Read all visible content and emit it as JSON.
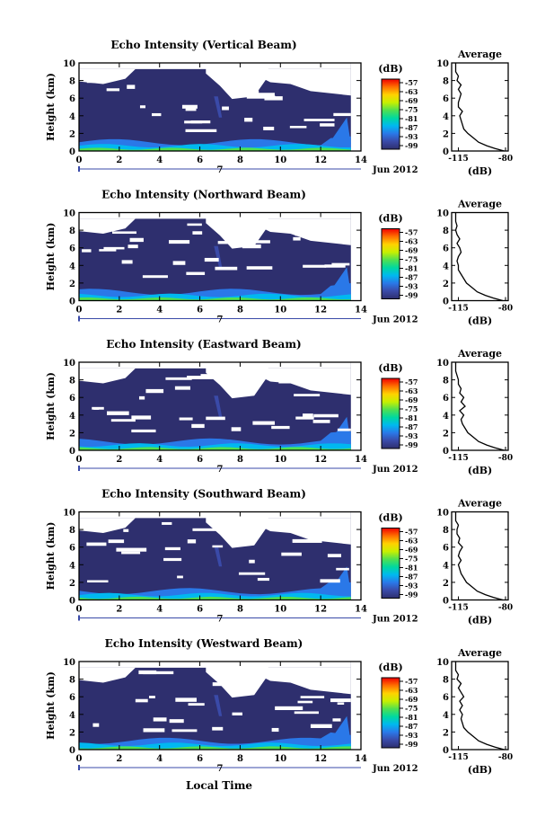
{
  "figure": {
    "xlabel": "Local Time",
    "date_label": "Jun 2012",
    "day_marker": "7",
    "colorbar_unit": "(dB)",
    "colorbar_ticks": [
      "-57",
      "-63",
      "-69",
      "-75",
      "-81",
      "-87",
      "-93",
      "-99"
    ],
    "colors": [
      "#f00000",
      "#ff7000",
      "#ffd200",
      "#c8f000",
      "#50e050",
      "#00d8a0",
      "#00b8f0",
      "#2a78e8",
      "#3a4aa8",
      "#2e2f6e"
    ],
    "background_color": "#2e2f6e",
    "gap_color": "#ffffff"
  },
  "chart_data": [
    {
      "type": "heatmap",
      "title": "Echo Intensity (Vertical Beam)",
      "ylabel": "Height (km)",
      "xlim": [
        0,
        14
      ],
      "ylim": [
        0,
        10
      ],
      "xticks": [
        "0",
        "2",
        "4",
        "6",
        "8",
        "10",
        "12",
        "14"
      ],
      "yticks": [
        "0",
        "2",
        "4",
        "6",
        "8",
        "10"
      ],
      "data_extent_hours": [
        0,
        13.5
      ],
      "profile": {
        "title": "Average",
        "xlabel": "(dB)",
        "xticks": [
          "-115",
          "-80"
        ],
        "xlim": [
          -120,
          -78
        ],
        "yticks": [
          "0",
          "2",
          "4",
          "6",
          "8",
          "10"
        ],
        "height": [
          0,
          0.3,
          0.6,
          1,
          1.5,
          2,
          2.5,
          3,
          3.5,
          4,
          4.5,
          5,
          5.5,
          6,
          6.5,
          7,
          7.5,
          8,
          8.5,
          9,
          9.5,
          10
        ],
        "values": [
          -81,
          -88,
          -94,
          -100,
          -104,
          -108,
          -111,
          -112,
          -113,
          -114,
          -112,
          -115,
          -115,
          -114,
          -113,
          -115,
          -113,
          -116,
          -115,
          -117,
          -117,
          -117
        ]
      }
    },
    {
      "type": "heatmap",
      "title": "Echo Intensity (Northward Beam)",
      "ylabel": "Height (km)",
      "xlim": [
        0,
        14
      ],
      "ylim": [
        0,
        10
      ],
      "xticks": [
        "0",
        "2",
        "4",
        "6",
        "8",
        "10",
        "12",
        "14"
      ],
      "yticks": [
        "0",
        "2",
        "4",
        "6",
        "8",
        "10"
      ],
      "data_extent_hours": [
        0,
        13.5
      ],
      "profile": {
        "title": "Average",
        "xlabel": "(dB)",
        "xticks": [
          "-115",
          "-80"
        ],
        "xlim": [
          -120,
          -78
        ],
        "yticks": [
          "0",
          "2",
          "4",
          "6",
          "8",
          "10"
        ],
        "height": [
          0,
          0.3,
          0.6,
          1,
          1.5,
          2,
          2.5,
          3,
          3.5,
          4,
          4.5,
          5,
          5.5,
          6,
          6.5,
          7,
          7.5,
          8,
          8.5,
          9,
          9.5,
          10
        ],
        "values": [
          -82,
          -89,
          -95,
          -101,
          -105,
          -109,
          -111,
          -113,
          -115,
          -115,
          -116,
          -115,
          -113,
          -114,
          -116,
          -114,
          -116,
          -117,
          -116,
          -117,
          -117,
          -117
        ]
      }
    },
    {
      "type": "heatmap",
      "title": "Echo Intensity (Eastward Beam)",
      "ylabel": "Height (km)",
      "xlim": [
        0,
        14
      ],
      "ylim": [
        0,
        10
      ],
      "xticks": [
        "0",
        "2",
        "4",
        "6",
        "8",
        "10",
        "12",
        "14"
      ],
      "yticks": [
        "0",
        "2",
        "4",
        "6",
        "8",
        "10"
      ],
      "data_extent_hours": [
        0,
        13.5
      ],
      "profile": {
        "title": "Average",
        "xlabel": "(dB)",
        "xticks": [
          "-115",
          "-80"
        ],
        "xlim": [
          -120,
          -78
        ],
        "yticks": [
          "0",
          "2",
          "4",
          "6",
          "8",
          "10"
        ],
        "height": [
          0,
          0.3,
          0.6,
          1,
          1.5,
          2,
          2.5,
          3,
          3.5,
          4,
          4.5,
          5,
          5.5,
          6,
          6.5,
          7,
          7.5,
          8,
          8.5,
          9,
          9.5,
          10
        ],
        "values": [
          -81,
          -88,
          -94,
          -100,
          -104,
          -108,
          -110,
          -112,
          -113,
          -111,
          -114,
          -110,
          -113,
          -111,
          -114,
          -113,
          -115,
          -115,
          -116,
          -117,
          -117,
          -117
        ]
      }
    },
    {
      "type": "heatmap",
      "title": "Echo Intensity (Southward Beam)",
      "ylabel": "Height (km)",
      "xlim": [
        0,
        14
      ],
      "ylim": [
        0,
        10
      ],
      "xticks": [
        "0",
        "2",
        "4",
        "6",
        "8",
        "10",
        "12",
        "14"
      ],
      "yticks": [
        "0",
        "2",
        "4",
        "6",
        "8",
        "10"
      ],
      "data_extent_hours": [
        0,
        13.5
      ],
      "profile": {
        "title": "Average",
        "xlabel": "(dB)",
        "xticks": [
          "-115",
          "-80"
        ],
        "xlim": [
          -120,
          -78
        ],
        "yticks": [
          "0",
          "2",
          "4",
          "6",
          "8",
          "10"
        ],
        "height": [
          0,
          0.3,
          0.6,
          1,
          1.5,
          2,
          2.5,
          3,
          3.5,
          4,
          4.5,
          5,
          5.5,
          6,
          6.5,
          7,
          7.5,
          8,
          8.5,
          9,
          9.5,
          10
        ],
        "values": [
          -82,
          -89,
          -95,
          -101,
          -105,
          -109,
          -111,
          -113,
          -114,
          -115,
          -113,
          -115,
          -114,
          -112,
          -115,
          -114,
          -116,
          -116,
          -115,
          -117,
          -117,
          -117
        ]
      }
    },
    {
      "type": "heatmap",
      "title": "Echo Intensity (Westward Beam)",
      "ylabel": "Height (km)",
      "xlim": [
        0,
        14
      ],
      "ylim": [
        0,
        10
      ],
      "xticks": [
        "0",
        "2",
        "4",
        "6",
        "8",
        "10",
        "12",
        "14"
      ],
      "yticks": [
        "0",
        "2",
        "4",
        "6",
        "8",
        "10"
      ],
      "data_extent_hours": [
        0,
        13.5
      ],
      "profile": {
        "title": "Average",
        "xlabel": "(dB)",
        "xticks": [
          "-115",
          "-80"
        ],
        "xlim": [
          -120,
          -78
        ],
        "yticks": [
          "0",
          "2",
          "4",
          "6",
          "8",
          "10"
        ],
        "height": [
          0,
          0.3,
          0.6,
          1,
          1.5,
          2,
          2.5,
          3,
          3.5,
          4,
          4.5,
          5,
          5.5,
          6,
          6.5,
          7,
          7.5,
          8,
          8.5,
          9,
          9.5,
          10
        ],
        "values": [
          -81,
          -88,
          -94,
          -100,
          -104,
          -108,
          -111,
          -112,
          -113,
          -112,
          -114,
          -112,
          -114,
          -111,
          -113,
          -115,
          -113,
          -116,
          -115,
          -117,
          -117,
          -117
        ]
      }
    }
  ]
}
